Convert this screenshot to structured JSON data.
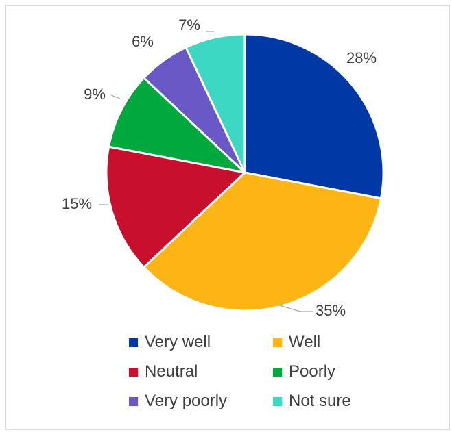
{
  "chart_data": {
    "type": "pie",
    "title": "",
    "legend_position": "bottom",
    "slices": [
      {
        "label": "Very well",
        "value": 28,
        "value_label": "28%",
        "color": "#0039a6"
      },
      {
        "label": "Well",
        "value": 35,
        "value_label": "35%",
        "color": "#fdb515"
      },
      {
        "label": "Neutral",
        "value": 15,
        "value_label": "15%",
        "color": "#c8102e"
      },
      {
        "label": "Poorly",
        "value": 9,
        "value_label": "9%",
        "color": "#00a83d"
      },
      {
        "label": "Very poorly",
        "value": 6,
        "value_label": "6%",
        "color": "#6a58c6"
      },
      {
        "label": "Not sure",
        "value": 7,
        "value_label": "7%",
        "color": "#3cd8c4"
      }
    ]
  }
}
